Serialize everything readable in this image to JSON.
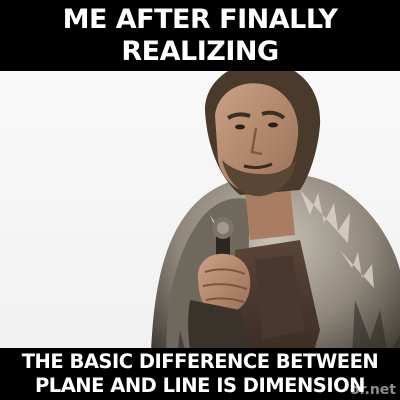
{
  "top_caption": {
    "line1": "ME AFTER FINALLY",
    "line2": "REALIZING"
  },
  "bottom_caption": {
    "line1": "THE BASIC DIFFERENCE BETWEEN",
    "line2": "PLANE AND LINE IS DIMENSION"
  },
  "watermark": "or.net",
  "colors": {
    "caption_text": "#ffffff",
    "caption_background": "#000000"
  }
}
